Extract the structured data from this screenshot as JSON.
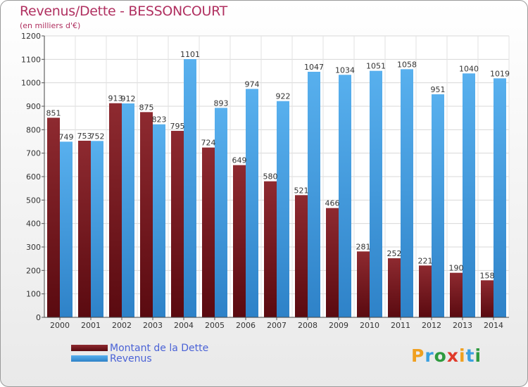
{
  "header": {
    "title": "Revenus/Dette - BESSONCOURT",
    "subtitle": "(en milliers d'€)"
  },
  "chart_data": {
    "type": "bar",
    "title": "Revenus/Dette - BESSONCOURT",
    "ylabel": "(en milliers d'€)",
    "xlabel": "",
    "ylim": [
      0,
      1200
    ],
    "yticks": [
      0,
      100,
      200,
      300,
      400,
      500,
      600,
      700,
      800,
      900,
      1000,
      1100,
      1200
    ],
    "grid": true,
    "categories": [
      "2000",
      "2001",
      "2002",
      "2003",
      "2004",
      "2005",
      "2006",
      "2007",
      "2008",
      "2009",
      "2010",
      "2011",
      "2012",
      "2013",
      "2014"
    ],
    "series": [
      {
        "name": "Montant de la Dette",
        "color": "#7a1a1e",
        "values": [
          851,
          753,
          913,
          875,
          795,
          724,
          649,
          580,
          521,
          466,
          281,
          252,
          221,
          190,
          158
        ]
      },
      {
        "name": "Revenus",
        "color": "#4aa3e6",
        "values": [
          749,
          752,
          912,
          823,
          1101,
          893,
          974,
          922,
          1047,
          1034,
          1051,
          1058,
          951,
          1040,
          1019
        ]
      }
    ],
    "legend": "bottom-left"
  },
  "legend": {
    "items": [
      {
        "label": "Montant de la Dette",
        "color": "#7a1a1e"
      },
      {
        "label": "Revenus",
        "color": "#4aa3e6"
      }
    ]
  },
  "logo": {
    "letters": [
      "P",
      "r",
      "o",
      "x",
      "i",
      "t",
      "i"
    ],
    "colors": [
      "#f0a020",
      "#3aa0e0",
      "#2f9a3f",
      "#e03a2a",
      "#f0a020",
      "#3aa0e0",
      "#2f9a3f"
    ]
  }
}
